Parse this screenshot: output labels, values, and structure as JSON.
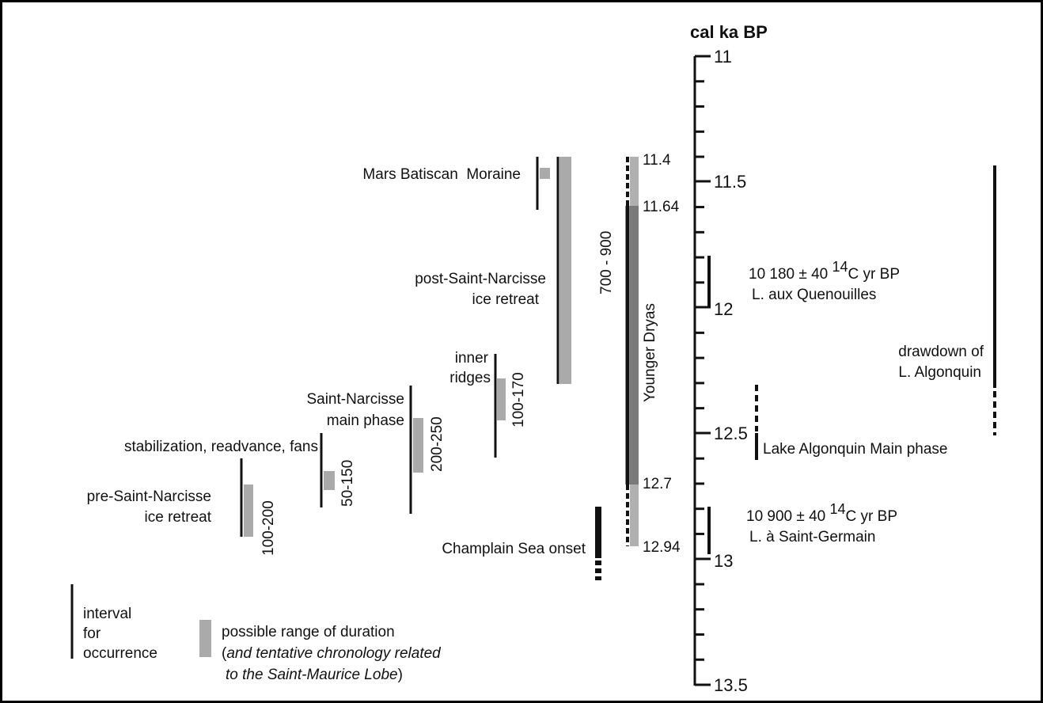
{
  "axis": {
    "title": "cal ka BP",
    "ticks": [
      "11",
      "11.5",
      "12",
      "12.5",
      "13",
      "13.5"
    ],
    "min": 11,
    "max": 13.5
  },
  "events": {
    "pre_saint_narcisse": {
      "line1": "pre-Saint-Narcisse",
      "line2": "ice retreat",
      "duration": "100-200"
    },
    "stabilization": {
      "label": "stabilization, readvance, fans",
      "duration": "50-150"
    },
    "saint_narcisse_main": {
      "line1": "Saint-Narcisse",
      "line2": "main phase",
      "duration": "200-250"
    },
    "inner_ridges": {
      "line1": "inner",
      "line2": "ridges",
      "duration": "100-170"
    },
    "post_saint_narcisse": {
      "line1": "post-Saint-Narcisse",
      "line2": "ice retreat"
    },
    "mars_batiscan": {
      "label": "Mars Batiscan  Moraine"
    },
    "champlain_sea": {
      "label": "Champlain Sea onset"
    }
  },
  "younger_dryas": {
    "label": "Younger Dryas",
    "duration": "700 - 900",
    "ages": [
      "11.4",
      "11.64",
      "12.7",
      "12.94"
    ]
  },
  "dates": {
    "quenouilles": {
      "age_prefix": "10 180 ± 40 ",
      "age_sup": "14",
      "age_suffix": "C yr BP",
      "site": "L. aux Quenouilles"
    },
    "saint_germain": {
      "age_prefix": "10 900 ± 40 ",
      "age_sup": "14",
      "age_suffix": "C yr BP",
      "site": "L. à Saint-Germain"
    }
  },
  "lake_algonquin": {
    "main_phase": "Lake Algonquin Main phase",
    "drawdown_line1": "drawdown of",
    "drawdown_line2": "L. Algonquin"
  },
  "legend": {
    "interval_line1": "interval",
    "interval_line2": "for",
    "interval_line3": "occurrence",
    "duration_line1": "possible range of duration",
    "duration_line2_open": "(",
    "duration_line2_ital": "and tentative chronology related",
    "duration_line3_ital": "to the Saint-Maurice Lobe",
    "duration_line3_close": ")"
  },
  "colors": {
    "interval_line": "#111111",
    "duration_bar": "#aaaaaa",
    "dryas_dark": "#111111",
    "dryas_mid": "#7a7a7a",
    "dryas_light": "#b0b0b0"
  }
}
